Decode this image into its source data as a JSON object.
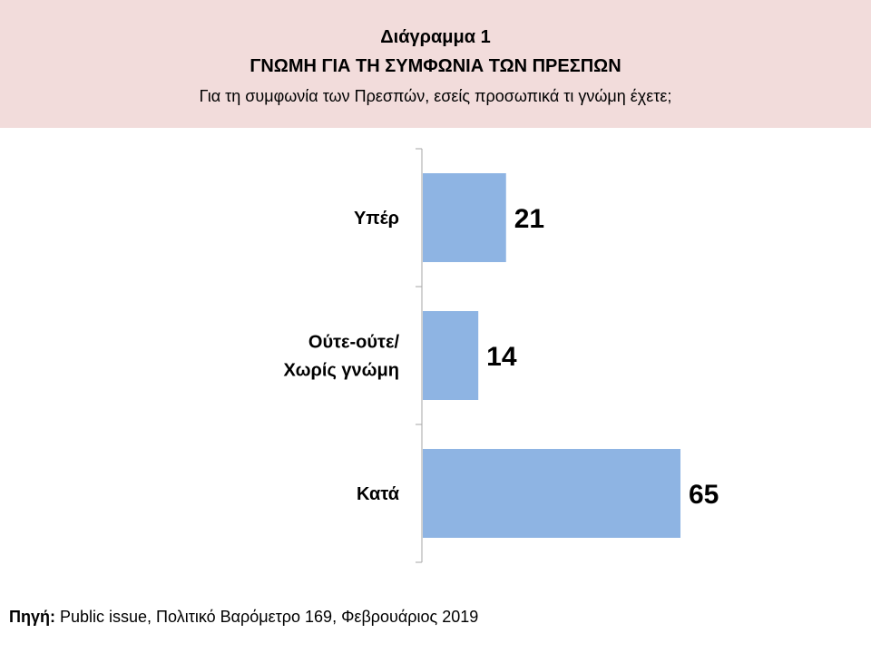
{
  "header": {
    "title": "Διάγραμμα 1",
    "subtitle": "ΓΝΩΜΗ ΓΙΑ ΤΗ ΣΥΜΦΩΝΙΑ ΤΩΝ ΠΡΕΣΠΩΝ",
    "question": "Για τη συμφωνία των Πρεσπών, εσείς προσωπικά τι γνώμη έχετε;"
  },
  "colors": {
    "header_bg": "#f2dcdb",
    "bar": "#8eb4e3",
    "axis": "#a6a6a6"
  },
  "chart_data": {
    "type": "bar",
    "orientation": "horizontal",
    "categories": [
      [
        "Υπέρ"
      ],
      [
        "Ούτε-ούτε/",
        "Χωρίς γνώμη"
      ],
      [
        "Κατά"
      ]
    ],
    "values": [
      21,
      14,
      65
    ],
    "xlim": [
      0,
      70
    ],
    "grid": false,
    "legend": "none"
  },
  "footer": {
    "source_label": "Πηγή:",
    "source_text": " Public issue, Πολιτικό Βαρόμετρο 169, Φεβρουάριος 2019"
  }
}
